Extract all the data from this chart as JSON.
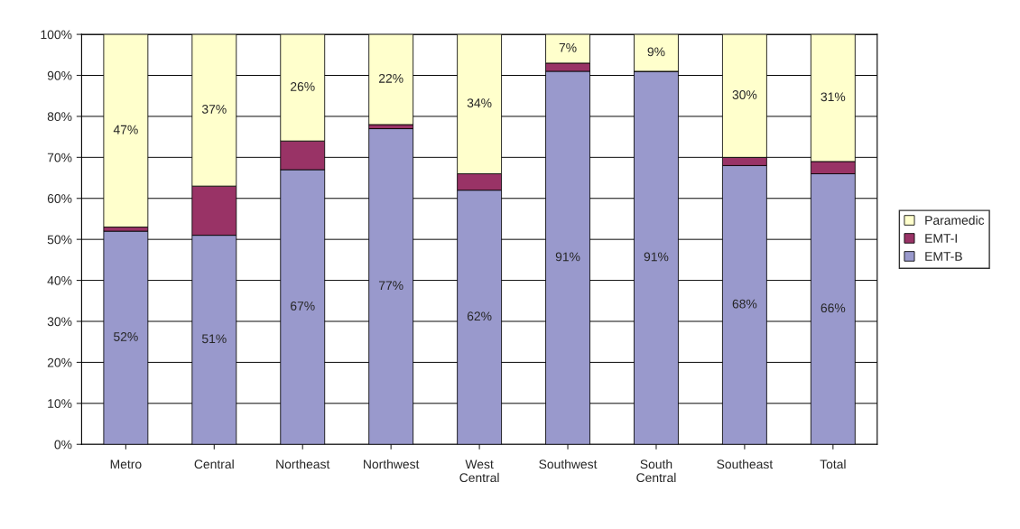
{
  "chart_data": {
    "type": "bar",
    "stacked": true,
    "categories": [
      "Metro",
      "Central",
      "Northeast",
      "Northwest",
      "West Central",
      "Southwest",
      "South Central",
      "Southeast",
      "Total"
    ],
    "series": [
      {
        "name": "EMT-B",
        "color": "#9999cc",
        "values": [
          52,
          51,
          67,
          77,
          62,
          91,
          91,
          68,
          66
        ],
        "value_labels": [
          "52%",
          "51%",
          "67%",
          "77%",
          "62%",
          "91%",
          "91%",
          "68%",
          "66%"
        ]
      },
      {
        "name": "EMT-I",
        "color": "#993366",
        "values": [
          1,
          12,
          7,
          1,
          4,
          2,
          0,
          2,
          3
        ]
      },
      {
        "name": "Paramedic",
        "color": "#ffffcc",
        "values": [
          47,
          37,
          26,
          22,
          34,
          7,
          9,
          30,
          31
        ],
        "value_labels": [
          "47%",
          "37%",
          "26%",
          "22%",
          "34%",
          "7%",
          "9%",
          "30%",
          "31%"
        ]
      }
    ],
    "ylim": [
      0,
      100
    ],
    "yticks": [
      {
        "value": 0,
        "label": "0%"
      },
      {
        "value": 10,
        "label": "10%"
      },
      {
        "value": 20,
        "label": "20%"
      },
      {
        "value": 30,
        "label": "30%"
      },
      {
        "value": 40,
        "label": "40%"
      },
      {
        "value": 50,
        "label": "50%"
      },
      {
        "value": 60,
        "label": "60%"
      },
      {
        "value": 70,
        "label": "70%"
      },
      {
        "value": 80,
        "label": "80%"
      },
      {
        "value": 90,
        "label": "90%"
      },
      {
        "value": 100,
        "label": "100%"
      }
    ],
    "grid": "y",
    "legend": "right"
  }
}
